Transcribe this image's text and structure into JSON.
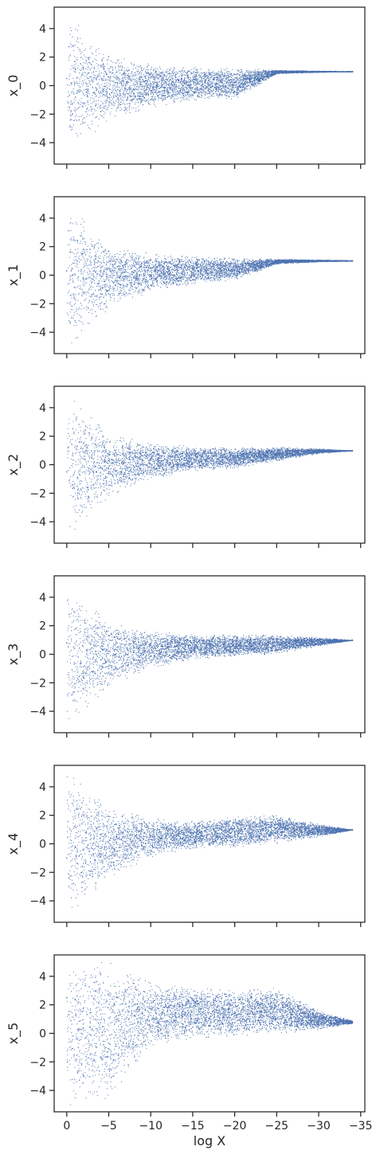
{
  "chart_data": [
    {
      "type": "scatter",
      "ylabel": "x_0",
      "xlabel": "",
      "xlim": [
        1.5,
        -35.5
      ],
      "ylim": [
        -5.5,
        5.5
      ],
      "xticks": [
        0,
        -5,
        -10,
        -15,
        -20,
        -25,
        -30,
        -35
      ],
      "yticks": [
        4,
        2,
        0,
        -2,
        -4
      ],
      "color": "#4c72b0",
      "x_range": [
        0,
        -34
      ],
      "converges_to": 1.0,
      "envelope": {
        "x": [
          0,
          -5,
          -10,
          -15,
          -20,
          -25,
          -30,
          -34
        ],
        "upper": [
          5,
          2.2,
          1.5,
          1.3,
          1.25,
          1.1,
          1.05,
          1.0
        ],
        "lower": [
          -5,
          -2.3,
          -1.5,
          -1.0,
          -0.9,
          0.85,
          0.95,
          1.0
        ]
      },
      "points_x_approx": [
        0,
        -2,
        -4,
        -6,
        -8,
        -10,
        -12,
        -14,
        -16,
        -18,
        -20,
        -22,
        -24,
        -26,
        -28,
        -30,
        -32,
        -34
      ],
      "points_y_approx": [
        0.5,
        -1.2,
        1.4,
        0.2,
        -0.6,
        0.8,
        0.4,
        -0.3,
        0.6,
        0.1,
        -0.4,
        0.95,
        1.0,
        1.0,
        1.02,
        1.0,
        1.01,
        1.0
      ]
    },
    {
      "type": "scatter",
      "ylabel": "x_1",
      "xlabel": "",
      "xlim": [
        1.5,
        -35.5
      ],
      "ylim": [
        -5.5,
        5.5
      ],
      "xticks": [
        0,
        -5,
        -10,
        -15,
        -20,
        -25,
        -30,
        -35
      ],
      "yticks": [
        4,
        2,
        0,
        -2,
        -4
      ],
      "color": "#4c72b0",
      "x_range": [
        0,
        -34
      ],
      "converges_to": 1.0,
      "envelope": {
        "x": [
          0,
          -5,
          -10,
          -15,
          -20,
          -25,
          -30,
          -34
        ],
        "upper": [
          5,
          2.2,
          1.5,
          1.3,
          1.2,
          1.15,
          1.1,
          1.05
        ],
        "lower": [
          -5,
          -2.3,
          -1.2,
          -0.6,
          -0.3,
          0.8,
          0.95,
          1.0
        ]
      },
      "points_x_approx": [
        0,
        -2,
        -4,
        -6,
        -8,
        -10,
        -12,
        -14,
        -16,
        -18,
        -20,
        -22,
        -24,
        -26,
        -28,
        -30,
        -32,
        -34
      ],
      "points_y_approx": [
        0.3,
        1.8,
        -1.0,
        0.6,
        -0.2,
        0.5,
        0.2,
        0.6,
        0.1,
        0.5,
        0.3,
        0.8,
        0.95,
        1.0,
        1.0,
        1.02,
        1.0,
        1.0
      ]
    },
    {
      "type": "scatter",
      "ylabel": "x_2",
      "xlabel": "",
      "xlim": [
        1.5,
        -35.5
      ],
      "ylim": [
        -5.5,
        5.5
      ],
      "xticks": [
        0,
        -5,
        -10,
        -15,
        -20,
        -25,
        -30,
        -35
      ],
      "yticks": [
        4,
        2,
        0,
        -2,
        -4
      ],
      "color": "#4c72b0",
      "x_range": [
        0,
        -34
      ],
      "converges_to": 1.0,
      "envelope": {
        "x": [
          0,
          -5,
          -10,
          -15,
          -20,
          -25,
          -30,
          -34
        ],
        "upper": [
          5,
          2.2,
          1.5,
          1.3,
          1.2,
          1.25,
          1.15,
          1.0
        ],
        "lower": [
          -5,
          -2.2,
          -1.0,
          -0.4,
          -0.2,
          0.3,
          0.8,
          1.0
        ]
      },
      "points_x_approx": [
        0,
        -2,
        -4,
        -6,
        -8,
        -10,
        -12,
        -14,
        -16,
        -18,
        -20,
        -22,
        -24,
        -26,
        -28,
        -30,
        -32,
        -34
      ],
      "points_y_approx": [
        -0.5,
        1.5,
        -0.8,
        0.7,
        -0.1,
        0.4,
        0.3,
        0.5,
        0.2,
        0.4,
        0.3,
        0.6,
        0.8,
        0.9,
        1.0,
        1.0,
        1.0,
        1.0
      ]
    },
    {
      "type": "scatter",
      "ylabel": "x_3",
      "xlabel": "",
      "xlim": [
        1.5,
        -35.5
      ],
      "ylim": [
        -5.5,
        5.5
      ],
      "xticks": [
        0,
        -5,
        -10,
        -15,
        -20,
        -25,
        -30,
        -35
      ],
      "yticks": [
        4,
        2,
        0,
        -2,
        -4
      ],
      "color": "#4c72b0",
      "x_range": [
        0,
        -34
      ],
      "converges_to": 1.0,
      "envelope": {
        "x": [
          0,
          -5,
          -10,
          -15,
          -20,
          -25,
          -30,
          -34
        ],
        "upper": [
          5,
          2.2,
          1.6,
          1.4,
          1.35,
          1.35,
          1.2,
          1.0
        ],
        "lower": [
          -5,
          -2.2,
          -0.9,
          -0.3,
          -0.15,
          0.1,
          0.6,
          1.0
        ]
      },
      "points_x_approx": [
        0,
        -2,
        -4,
        -6,
        -8,
        -10,
        -12,
        -14,
        -16,
        -18,
        -20,
        -22,
        -24,
        -26,
        -28,
        -30,
        -32,
        -34
      ],
      "points_y_approx": [
        0.8,
        -1.6,
        1.2,
        0.3,
        -0.4,
        0.6,
        0.5,
        0.4,
        0.3,
        0.6,
        0.4,
        0.5,
        0.7,
        0.8,
        0.9,
        1.0,
        1.0,
        1.0
      ]
    },
    {
      "type": "scatter",
      "ylabel": "x_4",
      "xlabel": "",
      "xlim": [
        1.5,
        -35.5
      ],
      "ylim": [
        -5.5,
        5.5
      ],
      "xticks": [
        0,
        -5,
        -10,
        -15,
        -20,
        -25,
        -30,
        -35
      ],
      "yticks": [
        4,
        2,
        0,
        -2,
        -4
      ],
      "color": "#4c72b0",
      "x_range": [
        0,
        -34
      ],
      "converges_to": 1.0,
      "envelope": {
        "x": [
          0,
          -5,
          -10,
          -15,
          -20,
          -25,
          -30,
          -34
        ],
        "upper": [
          5,
          2.5,
          1.8,
          1.6,
          1.9,
          2.0,
          1.4,
          1.0
        ],
        "lower": [
          -5,
          -2.3,
          -0.9,
          -0.3,
          -0.2,
          0.1,
          0.5,
          1.0
        ]
      },
      "points_x_approx": [
        0,
        -2,
        -4,
        -6,
        -8,
        -10,
        -12,
        -14,
        -16,
        -18,
        -20,
        -22,
        -24,
        -26,
        -28,
        -30,
        -32,
        -34
      ],
      "points_y_approx": [
        -1.0,
        2.0,
        0.4,
        -0.5,
        1.2,
        0.3,
        0.7,
        0.2,
        0.9,
        0.5,
        1.1,
        0.8,
        0.9,
        1.2,
        0.9,
        0.8,
        1.0,
        1.0
      ]
    },
    {
      "type": "scatter",
      "ylabel": "x_5",
      "xlabel": "log X",
      "xlim": [
        1.5,
        -35.5
      ],
      "ylim": [
        -5.5,
        5.5
      ],
      "xticks": [
        0,
        -5,
        -10,
        -15,
        -20,
        -25,
        -30,
        -35
      ],
      "yticks": [
        4,
        2,
        0,
        -2,
        -4
      ],
      "color": "#4c72b0",
      "x_range": [
        0,
        -34
      ],
      "converges_to": 0.8,
      "envelope": {
        "x": [
          0,
          -5,
          -10,
          -15,
          -20,
          -25,
          -30,
          -34
        ],
        "upper": [
          5,
          5,
          3.5,
          3.2,
          3.0,
          3.2,
          1.6,
          0.9
        ],
        "lower": [
          -5,
          -4.5,
          -0.8,
          -0.3,
          -0.15,
          0.0,
          0.3,
          0.7
        ]
      },
      "points_x_approx": [
        0,
        -2,
        -4,
        -6,
        -8,
        -10,
        -12,
        -14,
        -16,
        -18,
        -20,
        -22,
        -24,
        -26,
        -28,
        -30,
        -32,
        -34
      ],
      "points_y_approx": [
        2.5,
        -3.0,
        4.2,
        1.0,
        3.5,
        0.5,
        1.8,
        0.2,
        2.4,
        0.3,
        1.5,
        2.8,
        1.2,
        0.9,
        0.7,
        0.6,
        0.7,
        0.8
      ]
    }
  ]
}
